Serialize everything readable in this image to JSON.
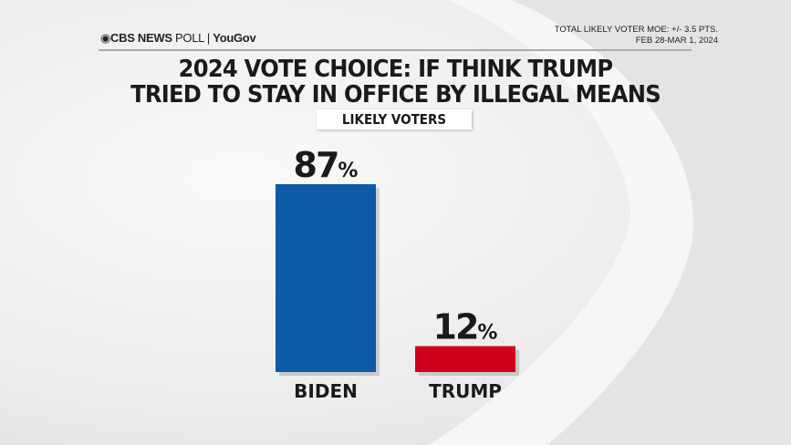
{
  "header": {
    "brand": "CBS NEWS",
    "brand_poll": "POLL",
    "brand_partner": "YouGov",
    "moe": "TOTAL LIKELY VOTER MOE: +/- 3.5 PTS.",
    "dates": "FEB 28-MAR 1, 2024"
  },
  "chart_data": {
    "type": "bar",
    "title": "2024 VOTE CHOICE: IF THINK TRUMP TRIED TO STAY IN OFFICE BY ILLEGAL MEANS",
    "title_line1": "2024 VOTE CHOICE: IF THINK TRUMP",
    "title_line2": "TRIED TO STAY IN OFFICE BY ILLEGAL MEANS",
    "subtitle": "LIKELY VOTERS",
    "categories": [
      "BIDEN",
      "TRUMP"
    ],
    "values": [
      87,
      12
    ],
    "unit": "%",
    "colors": [
      "#0d5aa7",
      "#d0021b"
    ],
    "grid": false
  }
}
